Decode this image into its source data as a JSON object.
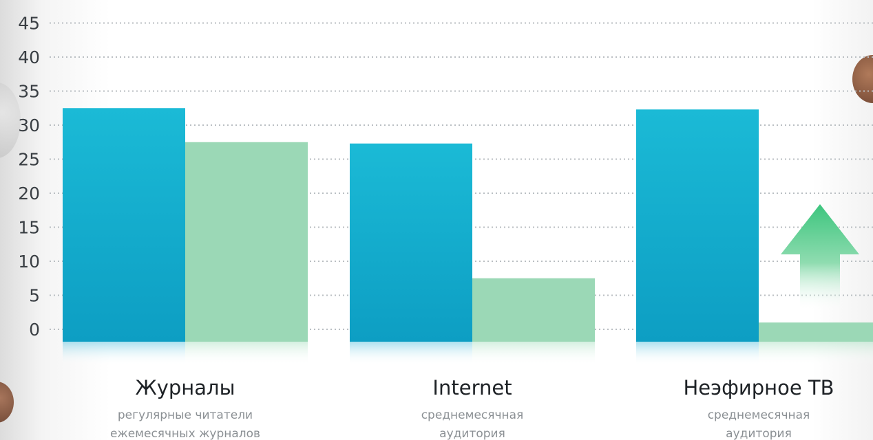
{
  "chart_data": {
    "type": "bar",
    "yticks": [
      "0",
      "5",
      "10",
      "15",
      "20",
      "25",
      "30",
      "35",
      "40",
      "45"
    ],
    "ylim": [
      0,
      45
    ],
    "grid": true,
    "categories": [
      {
        "title": "Журналы",
        "subtitle": [
          "регулярные читатели",
          "ежемесячных журналов"
        ]
      },
      {
        "title": "Internet",
        "subtitle": [
          "среднемесячная",
          "аудитория"
        ]
      },
      {
        "title": "Неэфирное ТВ",
        "subtitle": [
          "среднемесячная",
          "аудитория"
        ]
      }
    ],
    "series": [
      {
        "values": [
          32.5,
          27.3,
          32.3
        ]
      },
      {
        "values": [
          27.5,
          7.5,
          1.0
        ]
      }
    ],
    "annotations": [
      "up-arrow"
    ]
  },
  "colors": {
    "series_1_top": "#1bbad6",
    "series_1_bottom": "#0d9ec3",
    "series_2": "#9bd8b6",
    "grid": "#b9bec2",
    "arrow": "#3dc57e"
  }
}
